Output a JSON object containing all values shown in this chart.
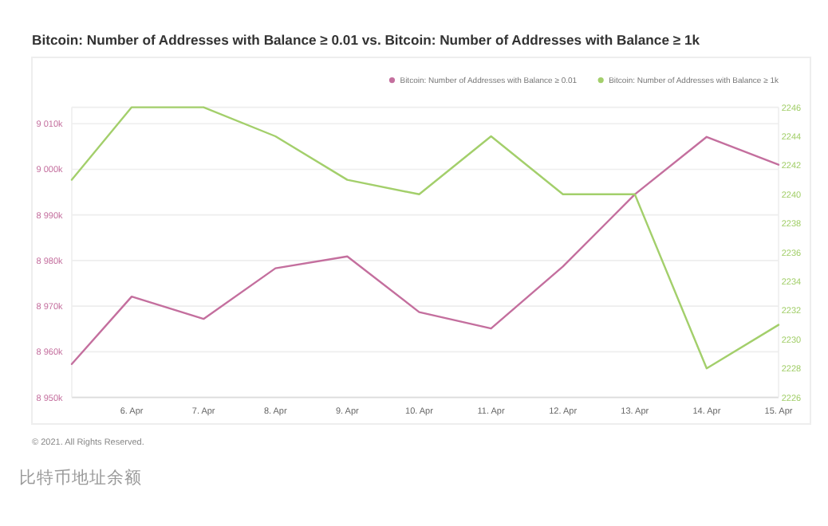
{
  "chart_data": {
    "type": "line",
    "title": "Bitcoin: Number of Addresses with Balance ≥ 0.01 vs. Bitcoin: Number of Addresses with Balance ≥ 1k",
    "x": [
      "2021-04-05T04:00",
      "2021-04-06",
      "2021-04-07",
      "2021-04-08",
      "2021-04-09",
      "2021-04-10",
      "2021-04-11",
      "2021-04-12",
      "2021-04-13",
      "2021-04-14",
      "2021-04-15"
    ],
    "series": [
      {
        "name": "Bitcoin: Number of Addresses with Balance ≥ 0.01",
        "color": "#c46f9e",
        "values": [
          8957.3,
          8972.1,
          8967.2,
          8978.3,
          8980.9,
          8968.7,
          8965.1,
          8978.7,
          8994.5,
          9007.1,
          9001.0
        ]
      },
      {
        "name": "Bitcoin: Number of Addresses with Balance ≥ 1k",
        "color": "#a3cf6b",
        "axis": "y2",
        "values": [
          2241,
          2246,
          2246,
          2244,
          2241,
          2240,
          2244,
          2240,
          2240,
          2228,
          2231
        ]
      }
    ],
    "xlim": [
      "2021-04-05T04:00",
      "2021-04-15"
    ],
    "xticks": [
      {
        "value": "2021-04-06",
        "label": "6. Apr"
      },
      {
        "value": "2021-04-07",
        "label": "7. Apr"
      },
      {
        "value": "2021-04-08",
        "label": "8. Apr"
      },
      {
        "value": "2021-04-09",
        "label": "9. Apr"
      },
      {
        "value": "2021-04-10",
        "label": "10. Apr"
      },
      {
        "value": "2021-04-11",
        "label": "11. Apr"
      },
      {
        "value": "2021-04-12",
        "label": "12. Apr"
      },
      {
        "value": "2021-04-13",
        "label": "13. Apr"
      },
      {
        "value": "2021-04-14",
        "label": "14. Apr"
      },
      {
        "value": "2021-04-15",
        "label": "15. Apr"
      }
    ],
    "ylim": [
      8950,
      9013.6
    ],
    "yticks": [
      {
        "value": 8950,
        "label": "8 950k"
      },
      {
        "value": 8960,
        "label": "8 960k"
      },
      {
        "value": 8970,
        "label": "8 970k"
      },
      {
        "value": 8980,
        "label": "8 980k"
      },
      {
        "value": 8990,
        "label": "8 990k"
      },
      {
        "value": 9000,
        "label": "9 000k"
      },
      {
        "value": 9010,
        "label": "9 010k"
      }
    ],
    "y2lim": [
      2226,
      2246
    ],
    "y2ticks": [
      2226,
      2228,
      2230,
      2232,
      2234,
      2236,
      2238,
      2240,
      2242,
      2244,
      2246
    ],
    "grid": "y",
    "legend": "top right",
    "marker": "none",
    "line_style": "solid",
    "annotations": [
      "© 2021. All Rights Reserved.",
      "比特币地址余额"
    ]
  }
}
